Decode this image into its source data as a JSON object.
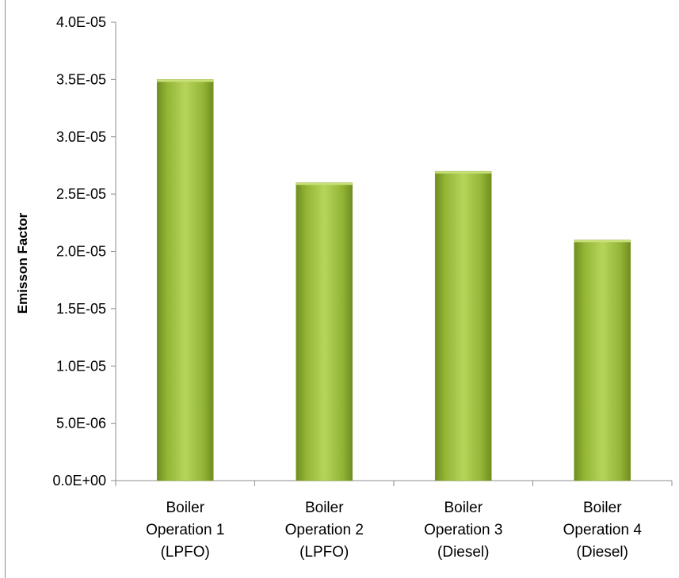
{
  "chart_data": {
    "type": "bar",
    "title": "",
    "ylabel": "Emisson Factor",
    "xlabel": "",
    "ylim": [
      0,
      4e-05
    ],
    "yticks": [
      0,
      5e-06,
      1e-05,
      1.5e-05,
      2e-05,
      2.5e-05,
      3e-05,
      3.5e-05,
      4e-05
    ],
    "ytick_labels": [
      "0.0E+00",
      "5.0E-06",
      "1.0E-05",
      "1.5E-05",
      "2.0E-05",
      "2.5E-05",
      "3.0E-05",
      "3.5E-05",
      "4.0E-05"
    ],
    "categories": [
      [
        "Boiler",
        "Operation 1",
        "(LPFO)"
      ],
      [
        "Boiler",
        "Operation 2",
        "(LPFO)"
      ],
      [
        "Boiler",
        "Operation 3",
        "(Diesel)"
      ],
      [
        "Boiler",
        "Operation 4",
        "(Diesel)"
      ]
    ],
    "values": [
      3.5e-05,
      2.6e-05,
      2.7e-05,
      2.1e-05
    ],
    "bar_color": "#9bbb3b",
    "grid": false,
    "legend": "none"
  }
}
